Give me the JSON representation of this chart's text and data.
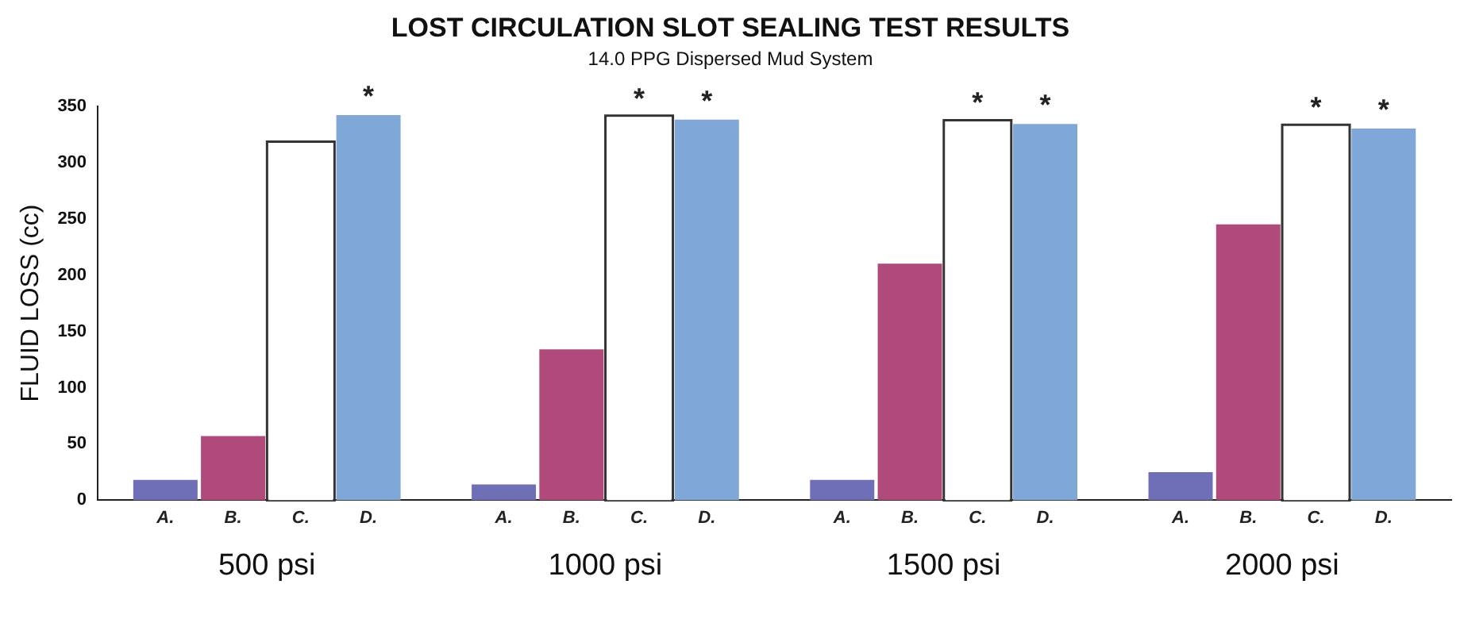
{
  "chart_data": {
    "type": "bar",
    "title": "LOST CIRCULATION SLOT SEALING TEST RESULTS",
    "subtitle": "14.0 PPG Dispersed Mud System",
    "ylabel": "FLUID LOSS (cc)",
    "categories": [
      "500 psi",
      "1000 psi",
      "1500 psi",
      "2000 psi"
    ],
    "series": [
      {
        "name": "A.",
        "color": "#6f6fb8",
        "values": [
          18,
          14,
          18,
          25
        ]
      },
      {
        "name": "B.",
        "color": "#b04a7a",
        "values": [
          57,
          134,
          210,
          245
        ]
      },
      {
        "name": "C.",
        "color": "#ffffff",
        "values": [
          317,
          340,
          336,
          332
        ],
        "value_labels": [
          null,
          "*",
          "*",
          "*"
        ]
      },
      {
        "name": "D.",
        "color": "#7fa8d8",
        "values": [
          342,
          338,
          334,
          330
        ],
        "value_labels": [
          "*",
          "*",
          "*",
          "*"
        ]
      }
    ],
    "ylim": [
      0,
      350
    ],
    "yticks": [
      0,
      50,
      100,
      150,
      200,
      250,
      300,
      350
    ],
    "grid": false,
    "legend": "bottom"
  }
}
